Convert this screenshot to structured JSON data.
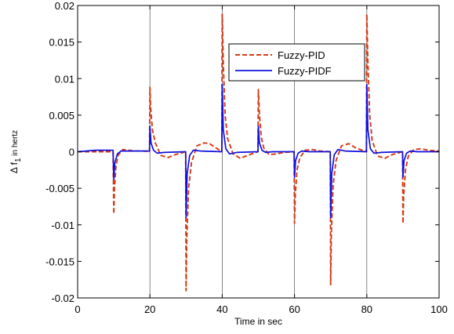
{
  "chart_data": {
    "type": "line",
    "xlabel": "Time in sec",
    "ylabel": "Δ f",
    "ylabel_sub": "1",
    "ylabel_suffix": " in hertz",
    "xlim": [
      0,
      100
    ],
    "ylim": [
      -0.02,
      0.02
    ],
    "xticks": [
      0,
      20,
      40,
      60,
      80,
      100
    ],
    "xtick_labels": [
      "0",
      "20",
      "40",
      "60",
      "80",
      "100"
    ],
    "yticks": [
      0.02,
      0.015,
      0.01,
      0.005,
      0,
      -0.005,
      -0.01,
      -0.015,
      -0.02
    ],
    "ytick_labels": [
      "0.02",
      "0.015",
      "0.01",
      "0.005",
      "0",
      "-0.005",
      "-0.01",
      "-0.015",
      "-0.02"
    ],
    "grid": "vertical lines at x ticks",
    "legend_position": "top-right",
    "series": [
      {
        "name": "Fuzzy-PID",
        "color": "#d43a16",
        "style": "dashed",
        "x": [
          0,
          9.8,
          10,
          10.2,
          10.6,
          11.2,
          12.5,
          14,
          16,
          18,
          19.9,
          20,
          20.2,
          20.7,
          21.5,
          23,
          25,
          27,
          29.9,
          30,
          30.2,
          30.7,
          31.5,
          33,
          35,
          36.5,
          38,
          39.9,
          40,
          40.3,
          40.8,
          41.5,
          43,
          45,
          47,
          49.9,
          50,
          50.3,
          50.8,
          51.5,
          53,
          55,
          57,
          59.9,
          60,
          60.2,
          60.7,
          61.5,
          63,
          65,
          67,
          69.9,
          70,
          70.2,
          70.7,
          71.5,
          73,
          75,
          77,
          79.9,
          80,
          80.3,
          80.8,
          81.5,
          83,
          85,
          87,
          89.9,
          90,
          90.2,
          90.7,
          91.5,
          93,
          95,
          97,
          100
        ],
        "y": [
          0,
          0,
          -0.0085,
          -0.005,
          -0.002,
          -0.0005,
          0.0003,
          0.0002,
          0.0001,
          0.0001,
          0,
          0.0088,
          0.006,
          0.003,
          0.0012,
          -0.0005,
          -0.0008,
          -0.0004,
          0,
          -0.019,
          -0.012,
          -0.005,
          -0.0015,
          0.0008,
          0.0012,
          0.0011,
          0.0006,
          0,
          0.0188,
          0.012,
          0.005,
          0.0018,
          -0.0003,
          -0.0009,
          -0.0005,
          0,
          0.0085,
          0.005,
          0.002,
          0.0005,
          -0.0004,
          -0.0003,
          -0.0001,
          0,
          -0.0098,
          -0.006,
          -0.0025,
          -0.0008,
          0.0002,
          0.0003,
          0.0001,
          0,
          -0.0182,
          -0.011,
          -0.0045,
          -0.0012,
          0.0008,
          0.0011,
          0.0005,
          0,
          0.0188,
          0.012,
          0.005,
          0.0015,
          -0.0006,
          -0.0009,
          -0.0004,
          0,
          -0.0098,
          -0.006,
          -0.0025,
          -0.0006,
          0.0003,
          0.0004,
          0.0002,
          0.0001
        ]
      },
      {
        "name": "Fuzzy-PIDF",
        "color": "#1010e0",
        "style": "solid",
        "x": [
          0,
          5,
          9.8,
          10,
          10.3,
          11,
          12,
          14,
          19.9,
          20,
          20.3,
          21,
          22,
          24,
          29.9,
          30,
          30.3,
          31,
          32,
          34,
          39.9,
          40,
          40.3,
          41,
          42,
          44,
          49.9,
          50,
          50.3,
          51,
          52,
          54,
          59.9,
          60,
          60.3,
          61,
          62,
          64,
          69.9,
          70,
          70.3,
          71,
          72,
          74,
          79.9,
          80,
          80.3,
          81,
          82,
          84,
          89.9,
          90,
          90.3,
          91,
          92,
          94,
          100
        ],
        "y": [
          0,
          0.0002,
          0.0002,
          -0.0038,
          -0.0015,
          -0.0003,
          0.0001,
          0.0001,
          0.0001,
          0.0035,
          0.0012,
          0.0002,
          -0.0002,
          -0.0001,
          0,
          -0.009,
          -0.003,
          -0.0005,
          0.0002,
          0.0001,
          0,
          0.0092,
          0.003,
          0.0004,
          -0.0003,
          -0.0001,
          0,
          0.0035,
          0.0012,
          0.0002,
          -0.0001,
          0,
          0,
          -0.0035,
          -0.0012,
          -0.0002,
          0.0001,
          0,
          0,
          -0.009,
          -0.003,
          -0.0004,
          0.0003,
          0.0001,
          0,
          0.0092,
          0.003,
          0.0004,
          -0.0002,
          -0.0001,
          0,
          -0.0035,
          -0.0012,
          -0.0002,
          0.0001,
          0,
          0
        ]
      }
    ]
  }
}
